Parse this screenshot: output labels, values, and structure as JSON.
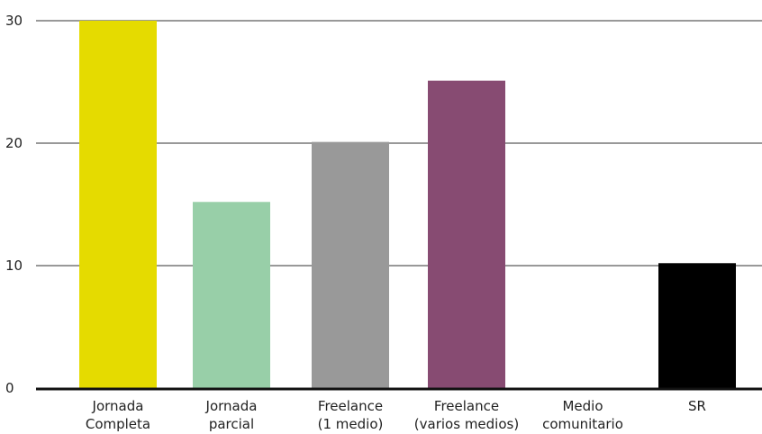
{
  "chart_data": {
    "type": "bar",
    "categories": [
      [
        "Jornada",
        "Completa"
      ],
      [
        "Jornada",
        "parcial"
      ],
      [
        "Freelance",
        "(1 medio)"
      ],
      [
        "Freelance",
        "(varios medios)"
      ],
      [
        "Medio",
        "comunitario"
      ],
      [
        "SR"
      ]
    ],
    "values": [
      30,
      15.2,
      20.1,
      25.1,
      0,
      10.2
    ],
    "colors": [
      "#e5db00",
      "#98cfa8",
      "#999999",
      "#874b72",
      "#ffffff",
      "#000000"
    ],
    "ylim": [
      0,
      30
    ],
    "yticks": [
      0,
      10,
      20,
      30
    ],
    "grid": true,
    "title": "",
    "xlabel": "",
    "ylabel": ""
  }
}
